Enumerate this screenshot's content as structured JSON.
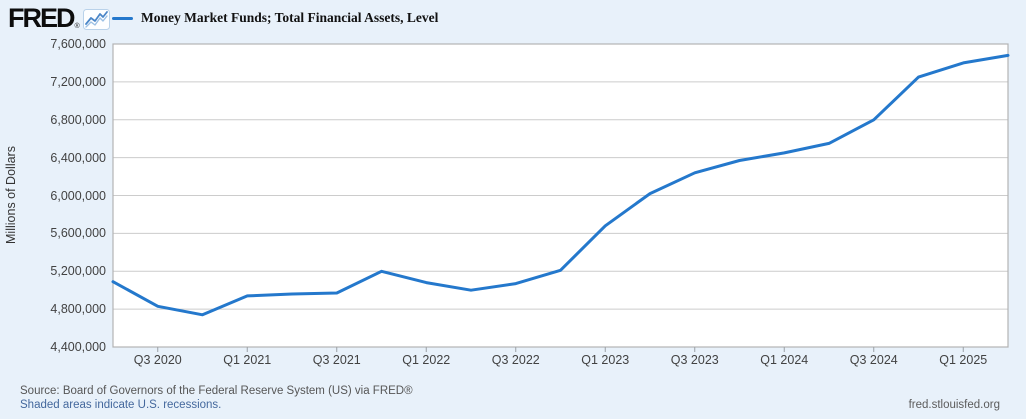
{
  "header": {
    "logo_text": "FRED",
    "logo_mark": "®",
    "series_label": "Money Market Funds; Total Financial Assets, Level"
  },
  "footer": {
    "source_text": "Source: Board of Governors of the Federal Reserve System (US) via FRED®",
    "recession_note": "Shaded areas indicate U.S. recessions.",
    "site_url": "fred.stlouisfed.org"
  },
  "colors": {
    "background": "#e8f1fa",
    "plot_background": "#ffffff",
    "gridline": "#cccccc",
    "plot_border": "#b3b3b3",
    "line": "#2478cc",
    "tick_text": "#424242",
    "source_text": "#565656",
    "link_text": "#44689d",
    "logo_icon_line": "#4a86c8",
    "logo_icon_border": "#b9d2ea"
  },
  "chart_data": {
    "type": "line",
    "title": "Money Market Funds; Total Financial Assets, Level",
    "xlabel": "",
    "ylabel": "Millions of Dollars",
    "ylim": [
      4400000,
      7600000
    ],
    "y_tick_step": 400000,
    "grid": "horizontal",
    "legend_position": "top-left",
    "y_tick_labels": [
      "7,600,000",
      "7,200,000",
      "6,800,000",
      "6,400,000",
      "6,000,000",
      "5,600,000",
      "5,200,000",
      "4,800,000",
      "4,400,000"
    ],
    "x_tick_labels": [
      "Q3 2020",
      "Q1 2021",
      "Q3 2021",
      "Q1 2022",
      "Q3 2022",
      "Q1 2023",
      "Q3 2023",
      "Q1 2024",
      "Q3 2024",
      "Q1 2025"
    ],
    "x_tick_quarter_indices": [
      1,
      3,
      5,
      7,
      9,
      11,
      13,
      15,
      17,
      19
    ],
    "x": [
      "2020 Q2",
      "2020 Q3",
      "2020 Q4",
      "2021 Q1",
      "2021 Q2",
      "2021 Q3",
      "2021 Q4",
      "2022 Q1",
      "2022 Q2",
      "2022 Q3",
      "2022 Q4",
      "2023 Q1",
      "2023 Q2",
      "2023 Q3",
      "2023 Q4",
      "2024 Q1",
      "2024 Q2",
      "2024 Q3",
      "2024 Q4",
      "2025 Q1",
      "2025 Q2"
    ],
    "values": [
      5090000,
      4830000,
      4740000,
      4940000,
      4960000,
      4970000,
      5200000,
      5080000,
      5000000,
      5070000,
      5210000,
      5680000,
      6020000,
      6240000,
      6370000,
      6450000,
      6550000,
      6800000,
      7250000,
      7400000,
      7480000
    ]
  }
}
